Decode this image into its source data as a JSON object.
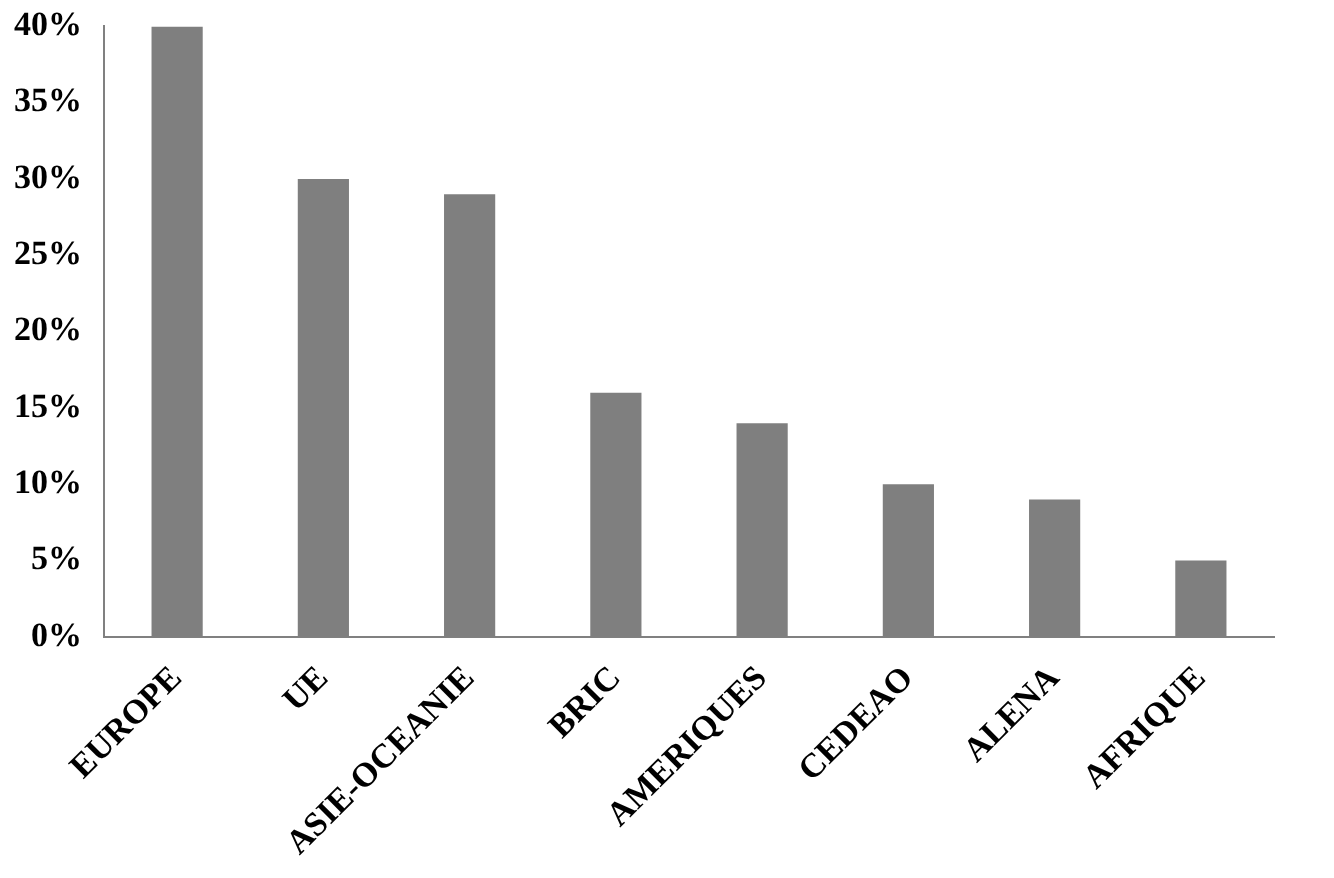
{
  "chart_data": {
    "type": "bar",
    "categories": [
      "EUROPE",
      "UE",
      "ASIE-OCEANIE",
      "BRIC",
      "AMERIQUES",
      "CEDEAO",
      "ALENA",
      "AFRIQUE"
    ],
    "values": [
      40,
      30,
      29,
      16,
      14,
      10,
      9,
      5
    ],
    "color": "#7f7f7f",
    "ylim": [
      0,
      40
    ],
    "yticks": [
      {
        "value": 0,
        "label": "0%"
      },
      {
        "value": 5,
        "label": "5%"
      },
      {
        "value": 10,
        "label": "10%"
      },
      {
        "value": 15,
        "label": "15%"
      },
      {
        "value": 20,
        "label": "20%"
      },
      {
        "value": 25,
        "label": "25%"
      },
      {
        "value": 30,
        "label": "30%"
      },
      {
        "value": 35,
        "label": "35%"
      },
      {
        "value": 40,
        "label": "40%"
      }
    ],
    "grid": false,
    "legend": false
  }
}
